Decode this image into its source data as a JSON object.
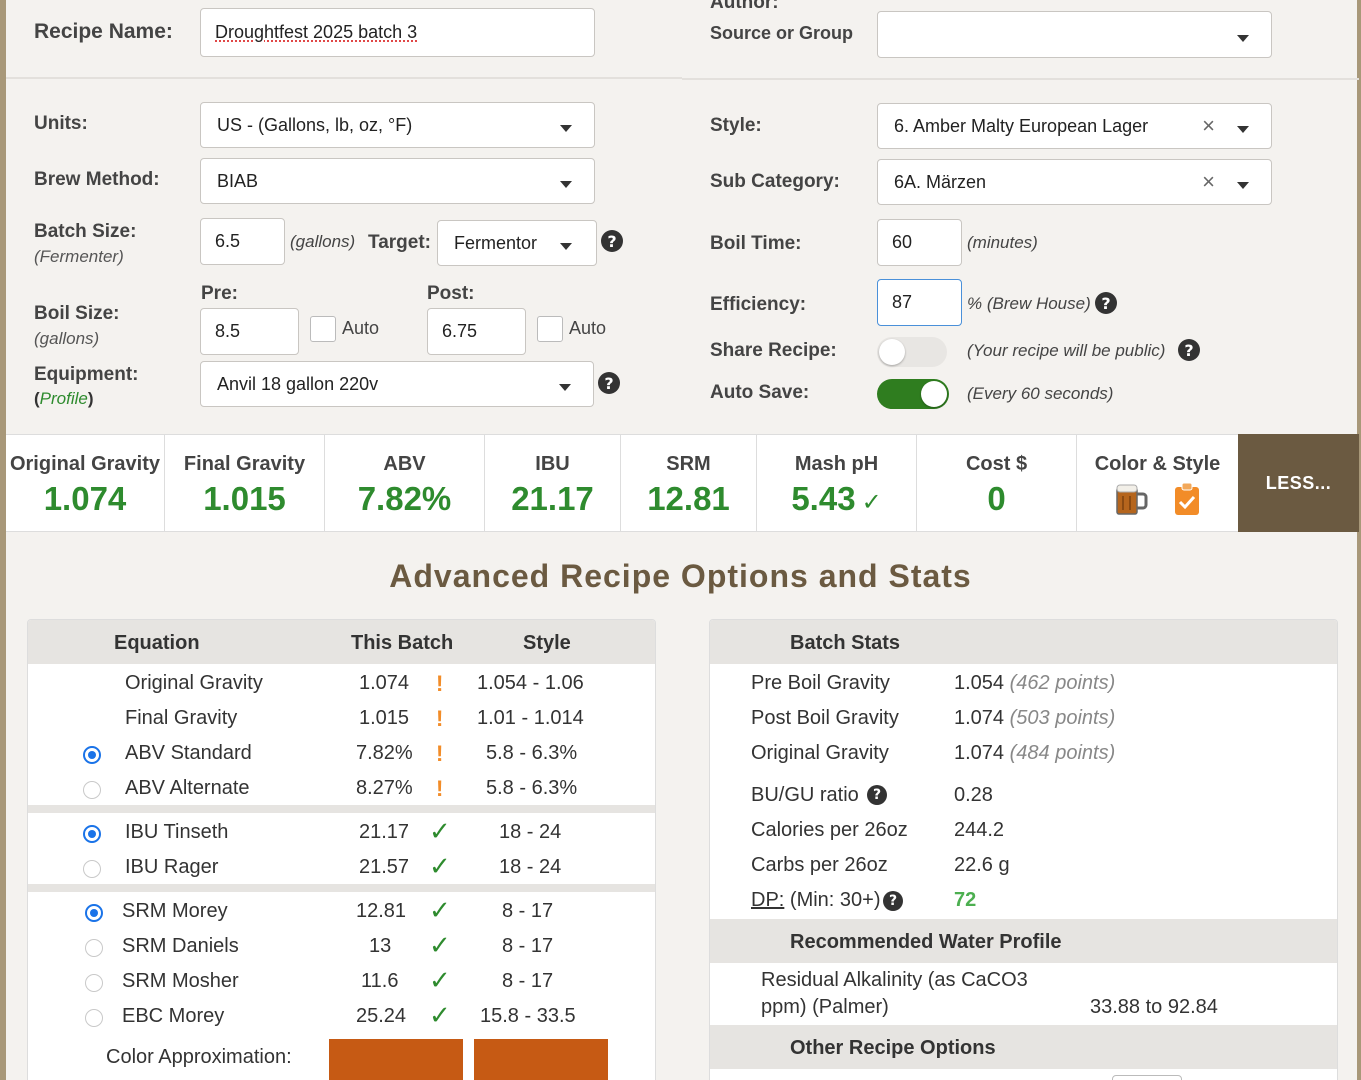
{
  "header": {
    "recipe_name_label": "Recipe Name:",
    "recipe_name_value": "Droughtfest 2025 batch 3",
    "author_label": "Author:",
    "source_label": "Source or Group",
    "source_value": ""
  },
  "left_form": {
    "units_label": "Units:",
    "units_value": "US - (Gallons, lb, oz, °F)",
    "brew_method_label": "Brew Method:",
    "brew_method_value": "BIAB",
    "batch_size_label": "Batch Size:",
    "batch_size_sub": "(Fermenter)",
    "batch_size_value": "6.5",
    "batch_size_unit": "(gallons)",
    "target_label": "Target:",
    "target_value": "Fermentor",
    "boil_size_label": "Boil Size:",
    "boil_size_sub": "(gallons)",
    "pre_label": "Pre:",
    "pre_value": "8.5",
    "post_label": "Post:",
    "post_value": "6.75",
    "auto_label": "Auto",
    "equipment_label": "Equipment:",
    "equipment_paren_open": "(",
    "equipment_profile_link": "Profile",
    "equipment_paren_close": ")",
    "equipment_value": "Anvil 18 gallon 220v"
  },
  "right_form": {
    "style_label": "Style:",
    "style_value": "6. Amber Malty European Lager",
    "subcat_label": "Sub Category:",
    "subcat_value": "6A. Märzen",
    "boil_time_label": "Boil Time:",
    "boil_time_value": "60",
    "boil_time_unit": "(minutes)",
    "efficiency_label": "Efficiency:",
    "efficiency_value": "87",
    "efficiency_unit": "% (Brew House)",
    "share_label": "Share Recipe:",
    "share_note": "(Your recipe will be public)",
    "share_on": false,
    "autosave_label": "Auto Save:",
    "autosave_note": "(Every 60 seconds)",
    "autosave_on": true
  },
  "stats": {
    "og_title": "Original Gravity",
    "og_value": "1.074",
    "fg_title": "Final Gravity",
    "fg_value": "1.015",
    "abv_title": "ABV",
    "abv_value": "7.82%",
    "ibu_title": "IBU",
    "ibu_value": "21.17",
    "srm_title": "SRM",
    "srm_value": "12.81",
    "ph_title": "Mash pH",
    "ph_value": "5.43",
    "cost_title": "Cost $",
    "cost_value": "0",
    "color_title": "Color & Style",
    "less_label": "LESS..."
  },
  "advanced": {
    "title": "Advanced Recipe Options and Stats",
    "col_equation": "Equation",
    "col_batch": "This Batch",
    "col_style": "Style",
    "rows": [
      {
        "name": "Original Gravity",
        "batch": "1.074",
        "style": "1.054 - 1.06"
      },
      {
        "name": "Final Gravity",
        "batch": "1.015",
        "style": "1.01 - 1.014"
      },
      {
        "name": "ABV Standard",
        "batch": "7.82%",
        "style": "5.8 - 6.3%"
      },
      {
        "name": "ABV Alternate",
        "batch": "8.27%",
        "style": "5.8 - 6.3%"
      },
      {
        "name": "IBU Tinseth",
        "batch": "21.17",
        "style": "18 - 24"
      },
      {
        "name": "IBU Rager",
        "batch": "21.57",
        "style": "18 - 24"
      },
      {
        "name": "SRM Morey",
        "batch": "12.81",
        "style": "8 - 17"
      },
      {
        "name": "SRM Daniels",
        "batch": "13",
        "style": "8 - 17"
      },
      {
        "name": "SRM Mosher",
        "batch": "11.6",
        "style": "8 - 17"
      },
      {
        "name": "EBC Morey",
        "batch": "25.24",
        "style": "15.8 - 33.5"
      }
    ],
    "color_approx_label": "Color Approximation:",
    "swatch_color": "#c65a14"
  },
  "batch_stats": {
    "title": "Batch Stats",
    "pre_boil_label": "Pre Boil Gravity",
    "pre_boil_value": "1.054",
    "pre_boil_points": "(462 points)",
    "post_boil_label": "Post Boil Gravity",
    "post_boil_value": "1.074",
    "post_boil_points": "(503 points)",
    "og_label": "Original Gravity",
    "og_value": "1.074",
    "og_points": "(484 points)",
    "bugu_label": "BU/GU ratio",
    "bugu_value": "0.28",
    "calories_label": "Calories per 26oz",
    "calories_value": "244.2",
    "carbs_label": "Carbs per 26oz",
    "carbs_value": "22.6 g",
    "dp_label": "DP:",
    "dp_min": "(Min: 30+)",
    "dp_value": "72",
    "water_title": "Recommended Water Profile",
    "ra_label_line1": "Residual Alkalinity (as CaCO3",
    "ra_label_line2": "ppm) (Palmer)",
    "ra_value": "33.88 to 92.84",
    "other_title": "Other Recipe Options"
  },
  "colors": {
    "accent_green": "#2e8b2e",
    "brown": "#6b5a41",
    "warning_orange": "#f28c28",
    "radio_blue": "#1a73e8"
  }
}
